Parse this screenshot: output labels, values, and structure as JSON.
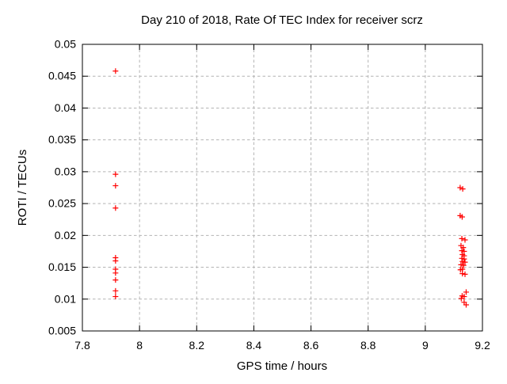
{
  "chart_data": {
    "type": "scatter",
    "title": "Day 210 of 2018, Rate Of TEC Index for receiver scrz",
    "xlabel": "GPS time / hours",
    "ylabel": "ROTI / TECUs",
    "xlim": [
      7.8,
      9.2
    ],
    "ylim": [
      0.005,
      0.05
    ],
    "xticks": [
      7.8,
      8.0,
      8.2,
      8.4,
      8.6,
      8.8,
      9.0,
      9.2
    ],
    "xtick_labels": [
      "7.8",
      "8",
      "8.2",
      "8.4",
      "8.6",
      "8.8",
      "9",
      "9.2"
    ],
    "yticks": [
      0.005,
      0.01,
      0.015,
      0.02,
      0.025,
      0.03,
      0.035,
      0.04,
      0.045,
      0.05
    ],
    "ytick_labels": [
      "0.005",
      "0.01",
      "0.015",
      "0.02",
      "0.025",
      "0.03",
      "0.035",
      "0.04",
      "0.045",
      "0.05"
    ],
    "grid": true,
    "legend_position": "none",
    "marker": {
      "shape": "plus",
      "size": 7,
      "color": "#ff0000"
    },
    "series": [
      {
        "name": "ROTI",
        "points": [
          [
            7.916,
            0.0458
          ],
          [
            7.916,
            0.0296
          ],
          [
            7.916,
            0.0278
          ],
          [
            7.916,
            0.0243
          ],
          [
            7.916,
            0.0165
          ],
          [
            7.916,
            0.016
          ],
          [
            7.916,
            0.0147
          ],
          [
            7.916,
            0.0141
          ],
          [
            7.916,
            0.013
          ],
          [
            7.916,
            0.0113
          ],
          [
            7.916,
            0.0104
          ],
          [
            9.122,
            0.0275
          ],
          [
            9.131,
            0.0273
          ],
          [
            9.122,
            0.0231
          ],
          [
            9.129,
            0.0229
          ],
          [
            9.128,
            0.0195
          ],
          [
            9.139,
            0.0193
          ],
          [
            9.125,
            0.0184
          ],
          [
            9.133,
            0.0181
          ],
          [
            9.128,
            0.0176
          ],
          [
            9.136,
            0.0175
          ],
          [
            9.13,
            0.017
          ],
          [
            9.136,
            0.0168
          ],
          [
            9.128,
            0.0164
          ],
          [
            9.136,
            0.0163
          ],
          [
            9.13,
            0.0159
          ],
          [
            9.139,
            0.0158
          ],
          [
            9.125,
            0.0154
          ],
          [
            9.134,
            0.0153
          ],
          [
            9.13,
            0.0147
          ],
          [
            9.123,
            0.0146
          ],
          [
            9.13,
            0.014
          ],
          [
            9.139,
            0.0139
          ],
          [
            9.143,
            0.0111
          ],
          [
            9.129,
            0.0105
          ],
          [
            9.136,
            0.0104
          ],
          [
            9.126,
            0.0101
          ],
          [
            9.136,
            0.0095
          ],
          [
            9.143,
            0.0091
          ]
        ]
      }
    ]
  },
  "colors": {
    "background": "#ffffff",
    "frame": "#000000",
    "grid": "#b4b4b4",
    "text": "#000000",
    "marker": "#ff0000"
  }
}
